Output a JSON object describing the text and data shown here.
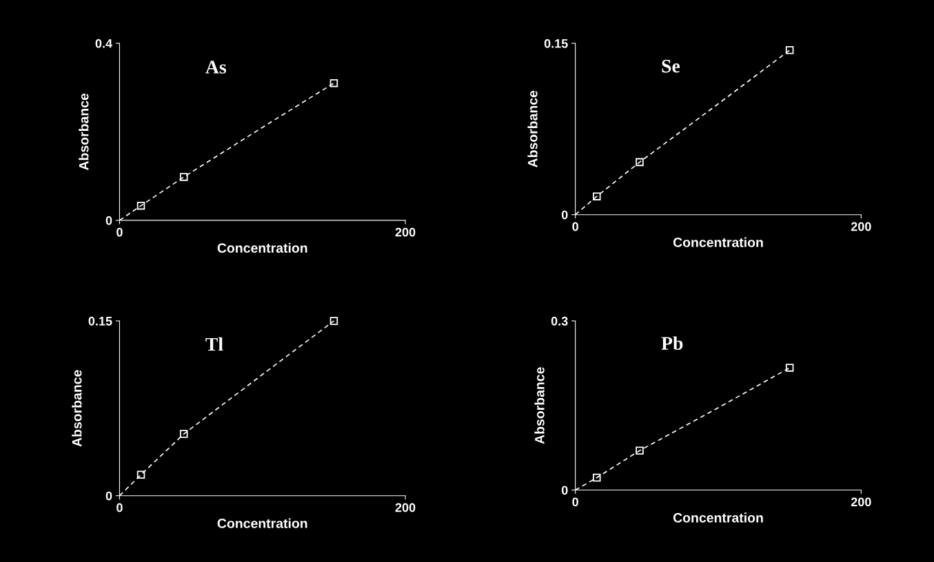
{
  "chart_data": [
    {
      "type": "line",
      "title": "As",
      "xlabel": "Concentration",
      "ylabel": "Absorbance",
      "x": [
        0,
        15,
        45,
        100,
        150
      ],
      "xlim": [
        0,
        200
      ],
      "xticks": [
        0,
        200
      ],
      "ylim": [
        0,
        0.4
      ],
      "yticks": [
        0,
        0.4
      ],
      "series": [
        {
          "color": "#ffffff",
          "line_style": "dashed",
          "marker": "none",
          "values": [
            0,
            0.033,
            0.098,
            0.21,
            0.31
          ]
        },
        {
          "type": "scatter",
          "color": "#ffffff",
          "marker": "square",
          "values": [
            null,
            0.033,
            0.098,
            null,
            0.31
          ]
        }
      ]
    },
    {
      "type": "line",
      "title": "Se",
      "xlabel": "Concentration",
      "ylabel": "Absorbance",
      "x": [
        0,
        15,
        45,
        100,
        150
      ],
      "xlim": [
        0,
        200
      ],
      "xticks": [
        0,
        200
      ],
      "ylim": [
        0,
        0.15
      ],
      "yticks": [
        0,
        0.15
      ],
      "series": [
        {
          "color": "#ffffff",
          "line_style": "dashed",
          "marker": "none",
          "values": [
            0,
            0.016,
            0.046,
            0.097,
            0.144
          ]
        },
        {
          "type": "scatter",
          "color": "#ffffff",
          "marker": "square",
          "values": [
            null,
            0.016,
            0.046,
            null,
            0.144
          ]
        }
      ]
    },
    {
      "type": "line",
      "title": "Tl",
      "xlabel": "Concentration",
      "ylabel": "Absorbance",
      "x": [
        0,
        15,
        45,
        100,
        150
      ],
      "xlim": [
        0,
        200
      ],
      "xticks": [
        0,
        200
      ],
      "ylim": [
        0,
        0.15
      ],
      "yticks": [
        0,
        0.15
      ],
      "series": [
        {
          "color": "#ffffff",
          "line_style": "dashed",
          "marker": "none",
          "values": [
            0,
            0.018,
            0.053,
            0.104,
            0.15
          ]
        },
        {
          "type": "scatter",
          "color": "#ffffff",
          "marker": "square",
          "values": [
            null,
            0.018,
            0.053,
            null,
            0.15
          ]
        }
      ]
    },
    {
      "type": "line",
      "title": "Pb",
      "xlabel": "Concentration",
      "ylabel": "Absorbance",
      "x": [
        0,
        15,
        45,
        100,
        150
      ],
      "xlim": [
        0,
        200
      ],
      "xticks": [
        0,
        200
      ],
      "ylim": [
        0,
        0.3
      ],
      "yticks": [
        0,
        0.3
      ],
      "series": [
        {
          "color": "#ffffff",
          "line_style": "dashed",
          "marker": "none",
          "values": [
            0,
            0.022,
            0.07,
            0.146,
            0.217
          ]
        },
        {
          "type": "scatter",
          "color": "#ffffff",
          "marker": "square",
          "values": [
            null,
            0.022,
            0.07,
            null,
            0.217
          ]
        }
      ]
    }
  ]
}
